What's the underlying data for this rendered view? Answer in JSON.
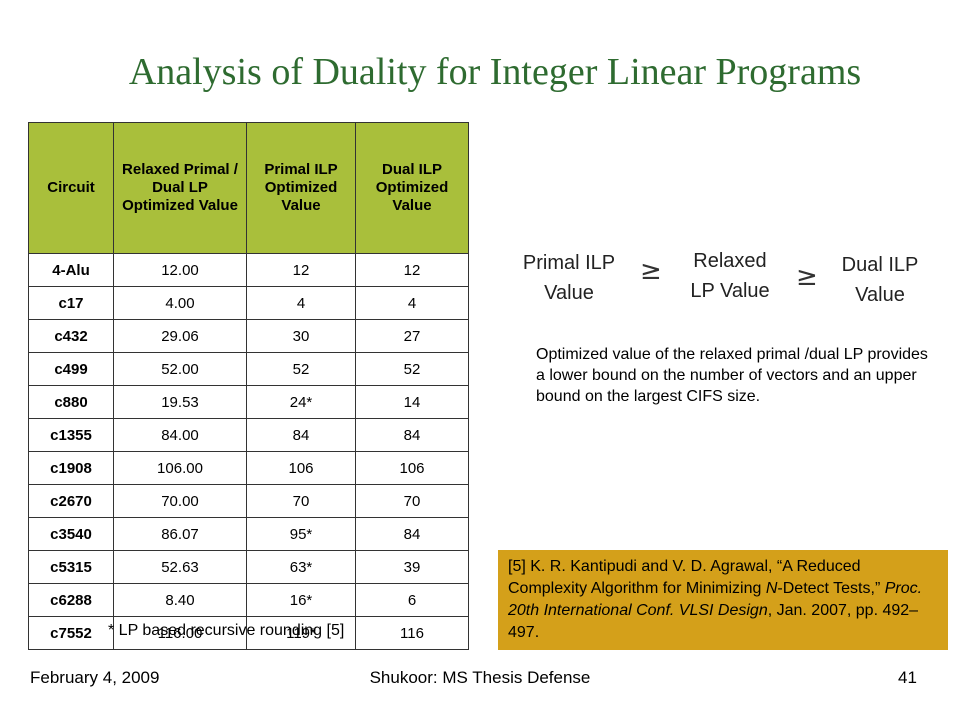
{
  "title": "Analysis of Duality for Integer Linear Programs",
  "table": {
    "headers": [
      "Circuit",
      "Relaxed Primal / Dual LP Optimized Value",
      "Primal ILP Optimized Value",
      "Dual ILP Optimized Value"
    ],
    "rows": [
      [
        "4-Alu",
        "12.00",
        "12",
        "12"
      ],
      [
        "c17",
        "4.00",
        "4",
        "4"
      ],
      [
        "c432",
        "29.06",
        "30",
        "27"
      ],
      [
        "c499",
        "52.00",
        "52",
        "52"
      ],
      [
        "c880",
        "19.53",
        "24*",
        "14"
      ],
      [
        "c1355",
        "84.00",
        "84",
        "84"
      ],
      [
        "c1908",
        "106.00",
        "106",
        "106"
      ],
      [
        "c2670",
        "70.00",
        "70",
        "70"
      ],
      [
        "c3540",
        "86.07",
        "95*",
        "84"
      ],
      [
        "c5315",
        "52.63",
        "63*",
        "39"
      ],
      [
        "c6288",
        "8.40",
        "16*",
        "6"
      ],
      [
        "c7552",
        "116.00",
        "119*",
        "116"
      ]
    ]
  },
  "table_footnote": "* LP based recursive rounding [5]",
  "relation": {
    "primal": [
      "Primal ILP",
      "Value"
    ],
    "relaxed": [
      "Relaxed",
      "LP Value"
    ],
    "dual": [
      "Dual ILP",
      "Value"
    ],
    "symbol": "≥"
  },
  "description": "Optimized value of the relaxed primal /dual LP provides a lower bound on the number of vectors and an upper bound on the largest CIFS size.",
  "reference": {
    "part1": "[5] K. R. Kantipudi and V. D. Agrawal, “A Reduced Complexity Algorithm for Minimizing ",
    "part2": "N",
    "part3": "-Detect Tests,” ",
    "part4": "Proc. 20th International Conf. VLSI Design",
    "part5": ", Jan. 2007, pp. 492–497."
  },
  "footer": {
    "date": "February 4, 2009",
    "center": "Shukoor: MS Thesis Defense",
    "page": "41"
  },
  "colors": {
    "title": "#2e6b30",
    "header_bg": "#a9bf3b",
    "reference_bg": "#d4a01a"
  }
}
